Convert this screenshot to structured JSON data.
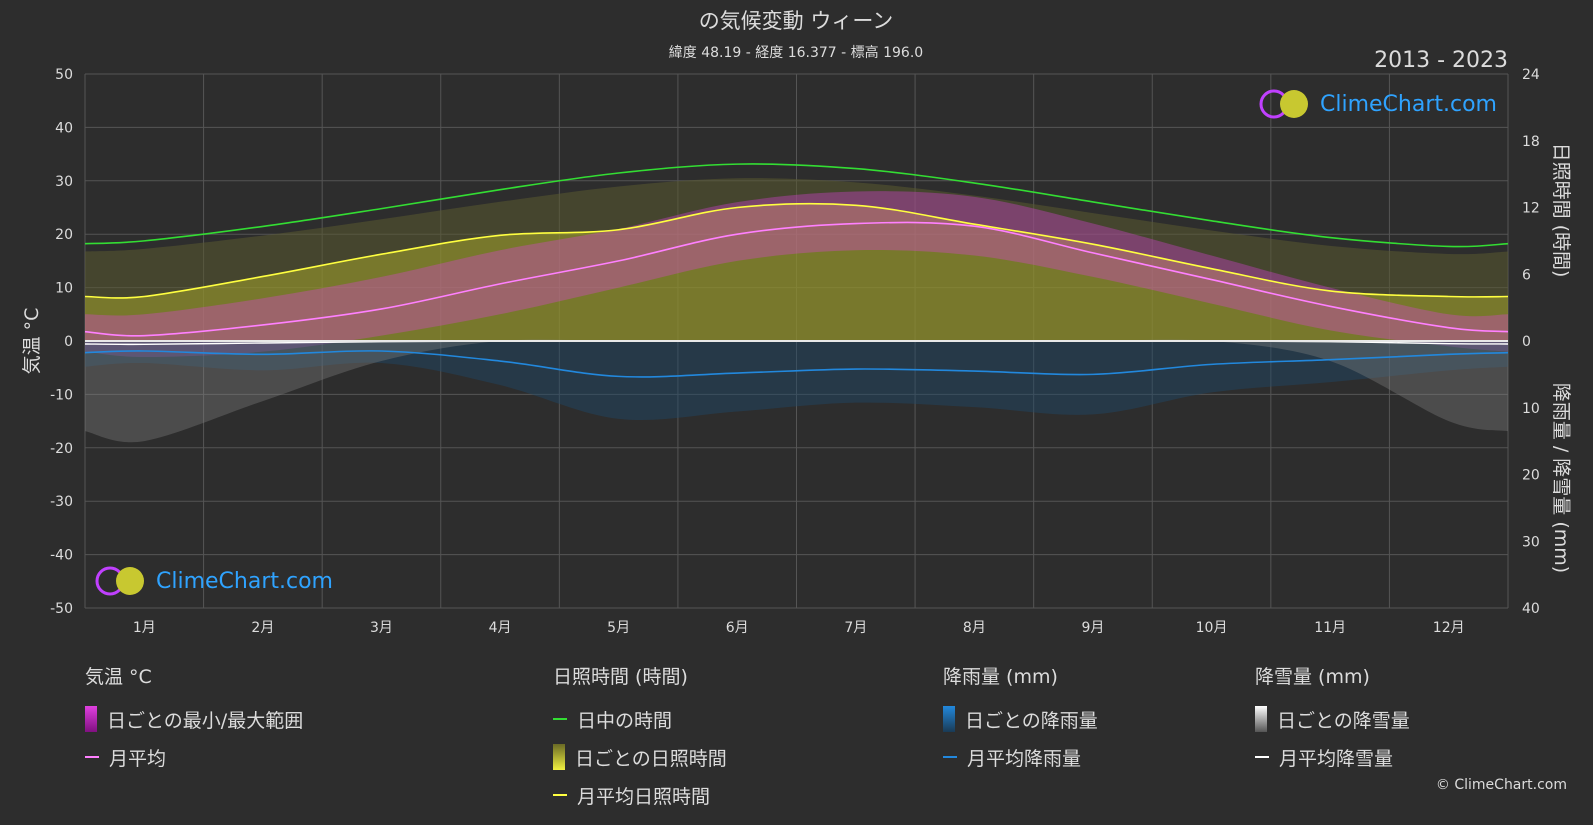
{
  "title": "の気候変動 ウィーン",
  "subtitle": "緯度 48.19 - 経度 16.377 - 標高 196.0",
  "period": "2013 - 2023",
  "brand": "ClimeChart.com",
  "copyright": "© ClimeChart.com",
  "colors": {
    "background": "#2d2d2d",
    "temp_range": "#e040e0",
    "temp_avg": "#ff80ff",
    "daylight": "#33dd33",
    "sunshine_fill": "#b5b52a",
    "sunshine_avg": "#ffff40",
    "rain": "#2288dd",
    "snow": "#ffffff"
  },
  "chart_data": {
    "type": "line",
    "months": [
      "1月",
      "2月",
      "3月",
      "4月",
      "5月",
      "6月",
      "7月",
      "8月",
      "9月",
      "10月",
      "11月",
      "12月"
    ],
    "y_left": {
      "label": "気温 °C",
      "range": [
        -50,
        50
      ],
      "ticks": [
        "50",
        "40",
        "30",
        "20",
        "10",
        "0",
        "-10",
        "-20",
        "-30",
        "-40",
        "-50"
      ]
    },
    "y_right_top": {
      "label": "日照時間 (時間)",
      "range": [
        0,
        24
      ],
      "ticks": [
        "24",
        "18",
        "12",
        "6",
        "0"
      ]
    },
    "y_right_bottom": {
      "label": "降雨量 / 降雪量 (mm)",
      "range": [
        0,
        40
      ],
      "ticks": [
        "10",
        "20",
        "30",
        "40"
      ]
    },
    "series": [
      {
        "name": "日中の時間",
        "unit": "h",
        "values": [
          9.0,
          10.3,
          11.9,
          13.6,
          15.1,
          15.9,
          15.5,
          14.2,
          12.5,
          10.8,
          9.3,
          8.5
        ]
      },
      {
        "name": "月平均日照時間",
        "unit": "h",
        "values": [
          4.0,
          5.8,
          7.8,
          9.5,
          10.0,
          12.0,
          12.2,
          10.5,
          8.7,
          6.5,
          4.5,
          4.0
        ]
      },
      {
        "name": "月平均",
        "unit": "°C",
        "values": [
          1.0,
          3.0,
          6.0,
          10.7,
          15.0,
          20.0,
          22.0,
          21.5,
          16.5,
          11.5,
          6.5,
          2.5
        ]
      },
      {
        "name": "日ごとの最小/最大範囲",
        "unit": "°C",
        "min": [
          -3.0,
          -2.0,
          1.0,
          5.0,
          10.0,
          15.0,
          17.0,
          16.0,
          12.0,
          7.0,
          2.0,
          -1.0
        ],
        "max": [
          5.0,
          8.0,
          12.0,
          17.0,
          21.0,
          26.0,
          28.0,
          27.0,
          22.0,
          16.0,
          10.0,
          5.0
        ]
      },
      {
        "name": "月平均降雨量",
        "unit": "mm",
        "values": [
          1.5,
          2.0,
          1.5,
          3.0,
          5.3,
          4.8,
          4.2,
          4.5,
          5.0,
          3.5,
          2.8,
          2.0
        ]
      },
      {
        "name": "月平均降雪量",
        "unit": "mm",
        "values": [
          0.5,
          0.3,
          0.1,
          0.0,
          0.0,
          0.0,
          0.0,
          0.0,
          0.0,
          0.0,
          0.1,
          0.4
        ]
      }
    ]
  },
  "legend": {
    "temp": {
      "header": "気温 °C",
      "items": [
        "日ごとの最小/最大範囲",
        "月平均"
      ]
    },
    "sun": {
      "header": "日照時間 (時間)",
      "items": [
        "日中の時間",
        "日ごとの日照時間",
        "月平均日照時間"
      ]
    },
    "rain": {
      "header": "降雨量 (mm)",
      "items": [
        "日ごとの降雨量",
        "月平均降雨量"
      ]
    },
    "snow": {
      "header": "降雪量 (mm)",
      "items": [
        "日ごとの降雪量",
        "月平均降雪量"
      ]
    }
  }
}
